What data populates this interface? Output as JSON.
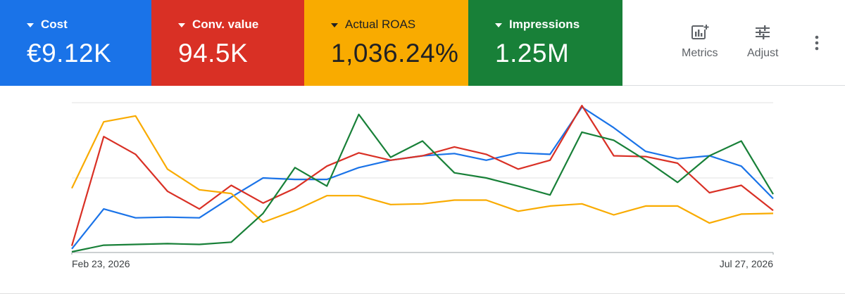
{
  "scorecards": [
    {
      "id": "cost",
      "label": "Cost",
      "value": "€9.12K",
      "color": "#1a73e8"
    },
    {
      "id": "conv",
      "label": "Conv. value",
      "value": "94.5K",
      "color": "#d93025"
    },
    {
      "id": "roas",
      "label": "Actual ROAS",
      "value": "1,036.24%",
      "color": "#f9ab00"
    },
    {
      "id": "impr",
      "label": "Impressions",
      "value": "1.25M",
      "color": "#188038"
    }
  ],
  "toolbar": {
    "metrics_label": "Metrics",
    "metrics_icon": "metrics-chart-plus-icon",
    "adjust_label": "Adjust",
    "adjust_icon": "sliders-icon",
    "more_icon": "more-vert-icon"
  },
  "chart_data": {
    "type": "line",
    "x_start_label": "Feb 23, 2026",
    "x_end_label": "Jul 27, 2026",
    "y_scale": "normalized per series (no visible y axis)",
    "ylim": [
      0,
      100
    ],
    "grid": true,
    "series": [
      {
        "name": "Cost",
        "color": "#1a73e8",
        "values": [
          2,
          29,
          23,
          23.5,
          23,
          37,
          50,
          49,
          49,
          57,
          62,
          65,
          66.5,
          62,
          67,
          66,
          98,
          84,
          68,
          63,
          65,
          58,
          36
        ]
      },
      {
        "name": "Conv. value",
        "color": "#d93025",
        "values": [
          4,
          78,
          66,
          41,
          29,
          45,
          33,
          43,
          58,
          67,
          62,
          65,
          71,
          66,
          56,
          62,
          99,
          65,
          64.5,
          60,
          40,
          45,
          28
        ]
      },
      {
        "name": "Actual ROAS",
        "color": "#f9ab00",
        "values": [
          43,
          88,
          92,
          56,
          42,
          39.5,
          20,
          28,
          38,
          38,
          32,
          32.5,
          35,
          35,
          27.5,
          31,
          32.5,
          25,
          31,
          31,
          19.5,
          25.5,
          26
        ]
      },
      {
        "name": "Impressions",
        "color": "#188038",
        "values": [
          0,
          4.5,
          5,
          5.5,
          5,
          6.5,
          26,
          57,
          44.5,
          93,
          64,
          75,
          53.5,
          50,
          44.5,
          38.5,
          81,
          75.5,
          62,
          47,
          65,
          75,
          39
        ]
      }
    ]
  }
}
